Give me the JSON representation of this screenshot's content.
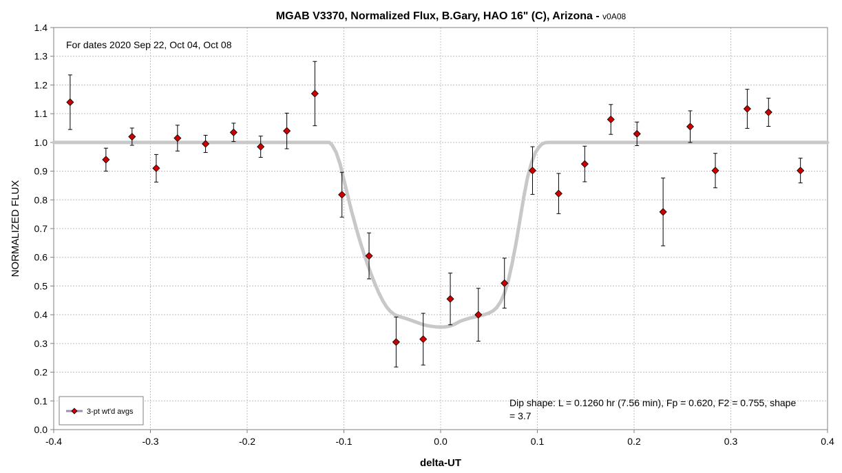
{
  "chart_data": {
    "type": "scatter",
    "title": "MGAB V3370, Normalized Flux, B.Gary, HAO 16\" (C), Arizona - ",
    "title_suffix": "v0A08",
    "xlabel": "delta-UT",
    "ylabel": "NORMALIZED FLUX",
    "xlim": [
      -0.4,
      0.4
    ],
    "ylim": [
      0.0,
      1.4
    ],
    "x_ticks": [
      -0.4,
      -0.3,
      -0.2,
      -0.1,
      0.0,
      0.1,
      0.2,
      0.3,
      0.4
    ],
    "x_tick_labels": [
      "-0.4",
      "-0.3",
      "-0.2",
      "-0.1",
      "0.0",
      "0.1",
      "0.2",
      "0.3",
      "0.4"
    ],
    "y_ticks": [
      0.0,
      0.1,
      0.2,
      0.3,
      0.4,
      0.5,
      0.6,
      0.7,
      0.8,
      0.9,
      1.0,
      1.1,
      1.2,
      1.3,
      1.4
    ],
    "y_tick_labels": [
      "0.0",
      "0.1",
      "0.2",
      "0.3",
      "0.4",
      "0.5",
      "0.6",
      "0.7",
      "0.8",
      "0.9",
      "1.0",
      "1.1",
      "1.2",
      "1.3",
      "1.4"
    ],
    "grid": true,
    "legend_placement": "bottom-left",
    "annotations": [
      "For dates 2020 Sep 22, Oct 04, Oct 08",
      "Dip shape:  L = 0.1260 hr (7.56 min), Fp = 0.620, F2 = 0.755, shape",
      "= 3.7"
    ],
    "series": [
      {
        "name": "3-pt wt'd avgs",
        "kind": "points_with_errorbars",
        "color": "#cc0000",
        "x": [
          -0.383,
          -0.346,
          -0.319,
          -0.294,
          -0.272,
          -0.243,
          -0.214,
          -0.186,
          -0.159,
          -0.13,
          -0.102,
          -0.074,
          -0.046,
          -0.018,
          0.01,
          0.039,
          0.066,
          0.095,
          0.122,
          0.149,
          0.176,
          0.203,
          0.23,
          0.258,
          0.284,
          0.317,
          0.339,
          0.372
        ],
        "y": [
          1.14,
          0.94,
          1.02,
          0.91,
          1.015,
          0.995,
          1.035,
          0.985,
          1.04,
          1.17,
          0.818,
          0.605,
          0.305,
          0.315,
          0.455,
          0.4,
          0.51,
          0.902,
          0.822,
          0.925,
          1.08,
          1.03,
          0.758,
          1.055,
          0.902,
          1.117,
          1.105,
          0.902
        ],
        "err": [
          0.095,
          0.04,
          0.03,
          0.048,
          0.045,
          0.03,
          0.032,
          0.037,
          0.062,
          0.112,
          0.078,
          0.08,
          0.087,
          0.09,
          0.09,
          0.092,
          0.087,
          0.083,
          0.07,
          0.062,
          0.052,
          0.041,
          0.118,
          0.055,
          0.06,
          0.068,
          0.049,
          0.043
        ]
      },
      {
        "name": "",
        "kind": "model_line",
        "color": "#c8c8c8",
        "x": [
          -0.4,
          -0.115,
          -0.112,
          -0.108,
          -0.104,
          -0.1,
          -0.096,
          -0.092,
          -0.088,
          -0.084,
          -0.08,
          -0.076,
          -0.072,
          -0.068,
          -0.064,
          -0.06,
          -0.056,
          -0.052,
          -0.048,
          -0.044,
          -0.04,
          -0.035,
          -0.03,
          -0.025,
          -0.02,
          -0.015,
          -0.01,
          -0.005,
          0.0,
          0.005,
          0.01,
          0.015,
          0.02,
          0.025,
          0.03,
          0.035,
          0.04,
          0.045,
          0.05,
          0.054,
          0.058,
          0.062,
          0.066,
          0.07,
          0.074,
          0.078,
          0.082,
          0.086,
          0.09,
          0.094,
          0.098,
          0.102,
          0.105,
          0.108,
          0.111,
          0.4
        ],
        "y": [
          1.0,
          1.0,
          0.99,
          0.965,
          0.925,
          0.87,
          0.815,
          0.76,
          0.71,
          0.663,
          0.62,
          0.58,
          0.543,
          0.508,
          0.477,
          0.45,
          0.428,
          0.412,
          0.401,
          0.395,
          0.391,
          0.386,
          0.38,
          0.374,
          0.368,
          0.363,
          0.36,
          0.358,
          0.357,
          0.358,
          0.361,
          0.368,
          0.377,
          0.383,
          0.388,
          0.392,
          0.396,
          0.4,
          0.406,
          0.413,
          0.425,
          0.445,
          0.475,
          0.52,
          0.58,
          0.65,
          0.73,
          0.81,
          0.88,
          0.93,
          0.965,
          0.985,
          0.995,
          0.999,
          1.0,
          1.0
        ]
      }
    ]
  }
}
